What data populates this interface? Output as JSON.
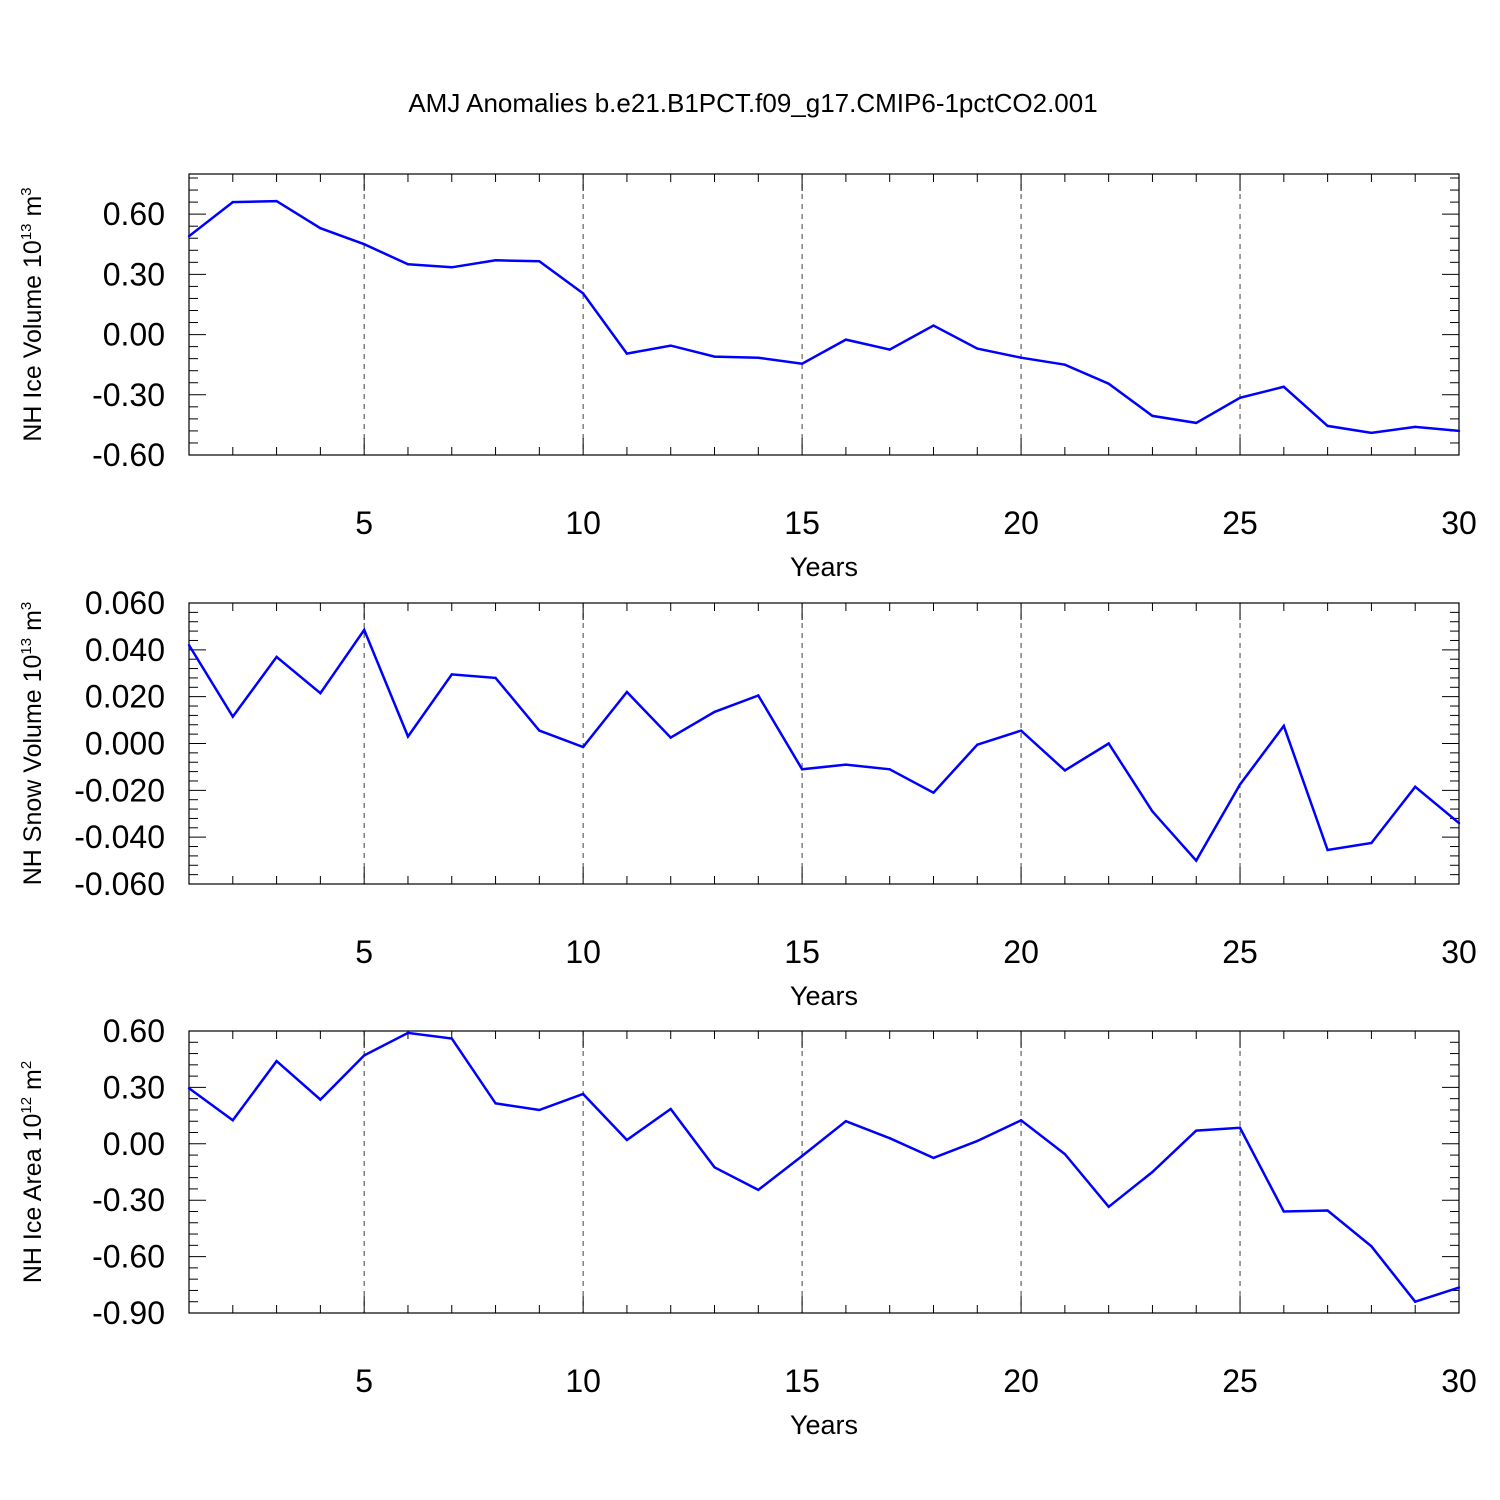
{
  "figure_title": "AMJ Anomalies b.e21.B1PCT.f09_g17.CMIP6-1pctCO2.001",
  "line_color": "#0000ff",
  "chart_data": [
    {
      "type": "line",
      "xlabel": "Years",
      "ylabel": {
        "base": "NH Ice Volume 10",
        "sup1": "13",
        "mid": " m",
        "sup2": "3"
      },
      "xlim": [
        1,
        30
      ],
      "ylim": [
        -0.6,
        0.8
      ],
      "xticks": [
        5,
        10,
        15,
        20,
        25,
        30
      ],
      "xtick_labels": [
        "5",
        "10",
        "15",
        "20",
        "25",
        "30"
      ],
      "yticks": [
        -0.6,
        -0.3,
        0.0,
        0.3,
        0.6
      ],
      "ytick_labels": [
        "-0.60",
        "-0.30",
        "0.00",
        "0.30",
        "0.60"
      ],
      "grid": "vertical dashed at major x ticks",
      "x": [
        1,
        2,
        3,
        4,
        5,
        6,
        7,
        8,
        9,
        10,
        11,
        12,
        13,
        14,
        15,
        16,
        17,
        18,
        19,
        20,
        21,
        22,
        23,
        24,
        25,
        26,
        27,
        28,
        29,
        30
      ],
      "series": [
        {
          "values": [
            0.49,
            0.66,
            0.665,
            0.53,
            0.45,
            0.35,
            0.335,
            0.37,
            0.365,
            0.205,
            -0.095,
            -0.055,
            -0.11,
            -0.115,
            -0.145,
            -0.025,
            -0.075,
            0.045,
            -0.07,
            -0.115,
            -0.15,
            -0.245,
            -0.405,
            -0.44,
            -0.315,
            -0.26,
            -0.455,
            -0.49,
            -0.46,
            -0.48
          ]
        }
      ]
    },
    {
      "type": "line",
      "xlabel": "Years",
      "ylabel": {
        "base": "NH Snow Volume 10",
        "sup1": "13",
        "mid": " m",
        "sup2": "3"
      },
      "xlim": [
        1,
        30
      ],
      "ylim": [
        -0.06,
        0.06
      ],
      "xticks": [
        5,
        10,
        15,
        20,
        25,
        30
      ],
      "xtick_labels": [
        "5",
        "10",
        "15",
        "20",
        "25",
        "30"
      ],
      "yticks": [
        -0.06,
        -0.04,
        -0.02,
        0.0,
        0.02,
        0.04,
        0.06
      ],
      "ytick_labels": [
        "-0.060",
        "-0.040",
        "-0.020",
        "0.000",
        "0.020",
        "0.040",
        "0.060"
      ],
      "grid": "vertical dashed at major x ticks",
      "x": [
        1,
        2,
        3,
        4,
        5,
        6,
        7,
        8,
        9,
        10,
        11,
        12,
        13,
        14,
        15,
        16,
        17,
        18,
        19,
        20,
        21,
        22,
        23,
        24,
        25,
        26,
        27,
        28,
        29,
        30
      ],
      "series": [
        {
          "values": [
            0.042,
            0.0115,
            0.037,
            0.0215,
            0.0485,
            0.003,
            0.0295,
            0.028,
            0.0055,
            -0.0015,
            0.022,
            0.0025,
            0.0135,
            0.0205,
            -0.011,
            -0.009,
            -0.011,
            -0.021,
            -0.0005,
            0.0055,
            -0.0115,
            0.0,
            -0.029,
            -0.05,
            -0.0175,
            0.0075,
            -0.0455,
            -0.0425,
            -0.0185,
            -0.034
          ]
        }
      ]
    },
    {
      "type": "line",
      "xlabel": "Years",
      "ylabel": {
        "base": "NH Ice Area 10",
        "sup1": "12",
        "mid": " m",
        "sup2": "2"
      },
      "xlim": [
        1,
        30
      ],
      "ylim": [
        -0.9,
        0.6
      ],
      "xticks": [
        5,
        10,
        15,
        20,
        25,
        30
      ],
      "xtick_labels": [
        "5",
        "10",
        "15",
        "20",
        "25",
        "30"
      ],
      "yticks": [
        -0.9,
        -0.6,
        -0.3,
        0.0,
        0.3,
        0.6
      ],
      "ytick_labels": [
        "-0.90",
        "-0.60",
        "-0.30",
        "0.00",
        "0.30",
        "0.60"
      ],
      "grid": "vertical dashed at major x ticks",
      "x": [
        1,
        2,
        3,
        4,
        5,
        6,
        7,
        8,
        9,
        10,
        11,
        12,
        13,
        14,
        15,
        16,
        17,
        18,
        19,
        20,
        21,
        22,
        23,
        24,
        25,
        26,
        27,
        28,
        29,
        30
      ],
      "series": [
        {
          "values": [
            0.295,
            0.125,
            0.44,
            0.235,
            0.47,
            0.59,
            0.56,
            0.215,
            0.18,
            0.265,
            0.02,
            0.185,
            -0.125,
            -0.245,
            -0.065,
            0.12,
            0.03,
            -0.075,
            0.015,
            0.125,
            -0.055,
            -0.335,
            -0.15,
            0.07,
            0.085,
            -0.36,
            -0.355,
            -0.545,
            -0.84,
            -0.765
          ]
        }
      ]
    }
  ]
}
